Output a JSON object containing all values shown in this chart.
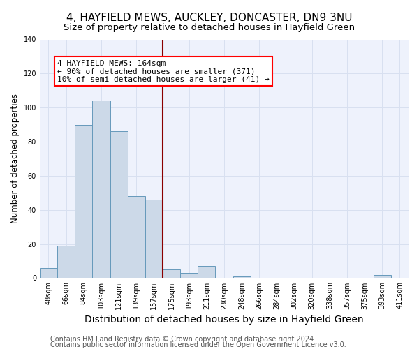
{
  "title": "4, HAYFIELD MEWS, AUCKLEY, DONCASTER, DN9 3NU",
  "subtitle": "Size of property relative to detached houses in Hayfield Green",
  "xlabel": "Distribution of detached houses by size in Hayfield Green",
  "ylabel": "Number of detached properties",
  "bar_labels": [
    "48sqm",
    "66sqm",
    "84sqm",
    "103sqm",
    "121sqm",
    "139sqm",
    "157sqm",
    "175sqm",
    "193sqm",
    "211sqm",
    "230sqm",
    "248sqm",
    "266sqm",
    "284sqm",
    "302sqm",
    "320sqm",
    "338sqm",
    "357sqm",
    "375sqm",
    "393sqm",
    "411sqm"
  ],
  "bar_values": [
    6,
    19,
    90,
    104,
    86,
    48,
    46,
    5,
    3,
    7,
    0,
    1,
    0,
    0,
    0,
    0,
    0,
    0,
    0,
    2,
    0
  ],
  "bar_color": "#ccd9e8",
  "bar_edgecolor": "#6699bb",
  "red_line_x": 6.5,
  "annotation_lines": [
    "4 HAYFIELD MEWS: 164sqm",
    "← 90% of detached houses are smaller (371)",
    "10% of semi-detached houses are larger (41) →"
  ],
  "ylim": [
    0,
    140
  ],
  "yticks": [
    0,
    20,
    40,
    60,
    80,
    100,
    120,
    140
  ],
  "grid_color": "#d8e0f0",
  "footer1": "Contains HM Land Registry data © Crown copyright and database right 2024.",
  "footer2": "Contains public sector information licensed under the Open Government Licence v3.0.",
  "bg_color": "#eef2fc",
  "title_fontsize": 11,
  "subtitle_fontsize": 9.5,
  "xlabel_fontsize": 10,
  "ylabel_fontsize": 8.5,
  "tick_fontsize": 7,
  "footer_fontsize": 7,
  "annot_fontsize": 8
}
